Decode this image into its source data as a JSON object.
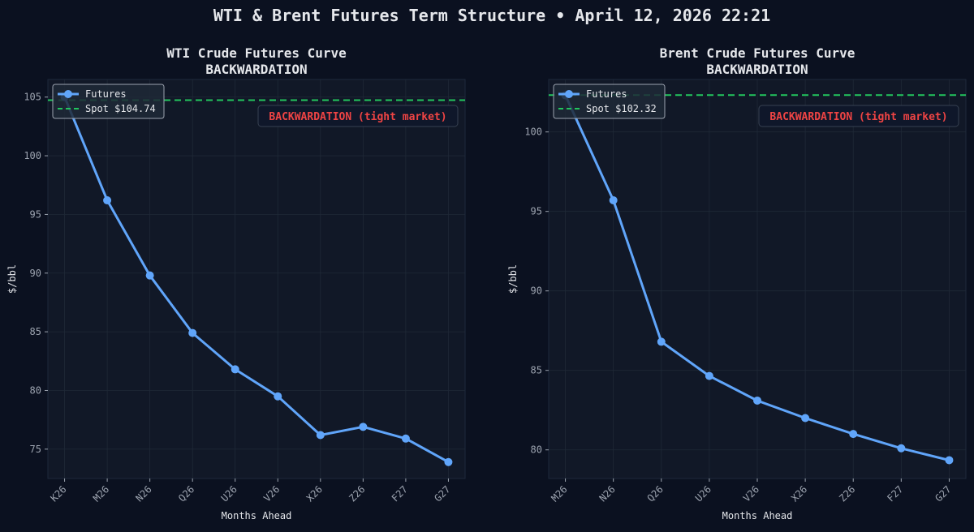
{
  "figure": {
    "title": "WTI & Brent Futures Term Structure • April 12, 2026 22:21"
  },
  "colors": {
    "figure_bg": "#0b1120",
    "axes_bg": "#111827",
    "text": "#e5e7eb",
    "tick": "#9ca3af",
    "series": "#60a5fa",
    "spot": "#22c55e",
    "annotation": "#ef4444",
    "grid": "#1f2937"
  },
  "chart_data": [
    {
      "type": "line",
      "title": "WTI Crude Futures Curve",
      "subtitle": "BACKWARDATION",
      "xlabel": "Months Ahead",
      "ylabel": "$/bbl",
      "categories": [
        "K26",
        "M26",
        "N26",
        "Q26",
        "U26",
        "V26",
        "X26",
        "Z26",
        "F27",
        "G27"
      ],
      "series": [
        {
          "name": "Futures",
          "values": [
            105.0,
            96.2,
            89.8,
            84.9,
            81.8,
            79.5,
            76.2,
            76.9,
            75.9,
            73.9
          ]
        }
      ],
      "spot": {
        "value": 104.74,
        "label": "Spot $104.74"
      },
      "annotation": "BACKWARDATION (tight market)",
      "ylim": [
        72.5,
        106.5
      ],
      "yticks": [
        75,
        80,
        85,
        90,
        95,
        100,
        105
      ],
      "grid": true,
      "legend": "top-left"
    },
    {
      "type": "line",
      "title": "Brent Crude Futures Curve",
      "subtitle": "BACKWARDATION",
      "xlabel": "Months Ahead",
      "ylabel": "$/bbl",
      "categories": [
        "M26",
        "N26",
        "Q26",
        "U26",
        "V26",
        "X26",
        "Z26",
        "F27",
        "G27"
      ],
      "series": [
        {
          "name": "Futures",
          "values": [
            102.3,
            95.7,
            86.8,
            84.65,
            83.1,
            82.0,
            81.0,
            80.1,
            79.35
          ]
        }
      ],
      "spot": {
        "value": 102.32,
        "label": "Spot $102.32"
      },
      "annotation": "BACKWARDATION (tight market)",
      "ylim": [
        78.2,
        103.3
      ],
      "yticks": [
        80,
        85,
        90,
        95,
        100
      ],
      "grid": true,
      "legend": "top-left"
    }
  ]
}
